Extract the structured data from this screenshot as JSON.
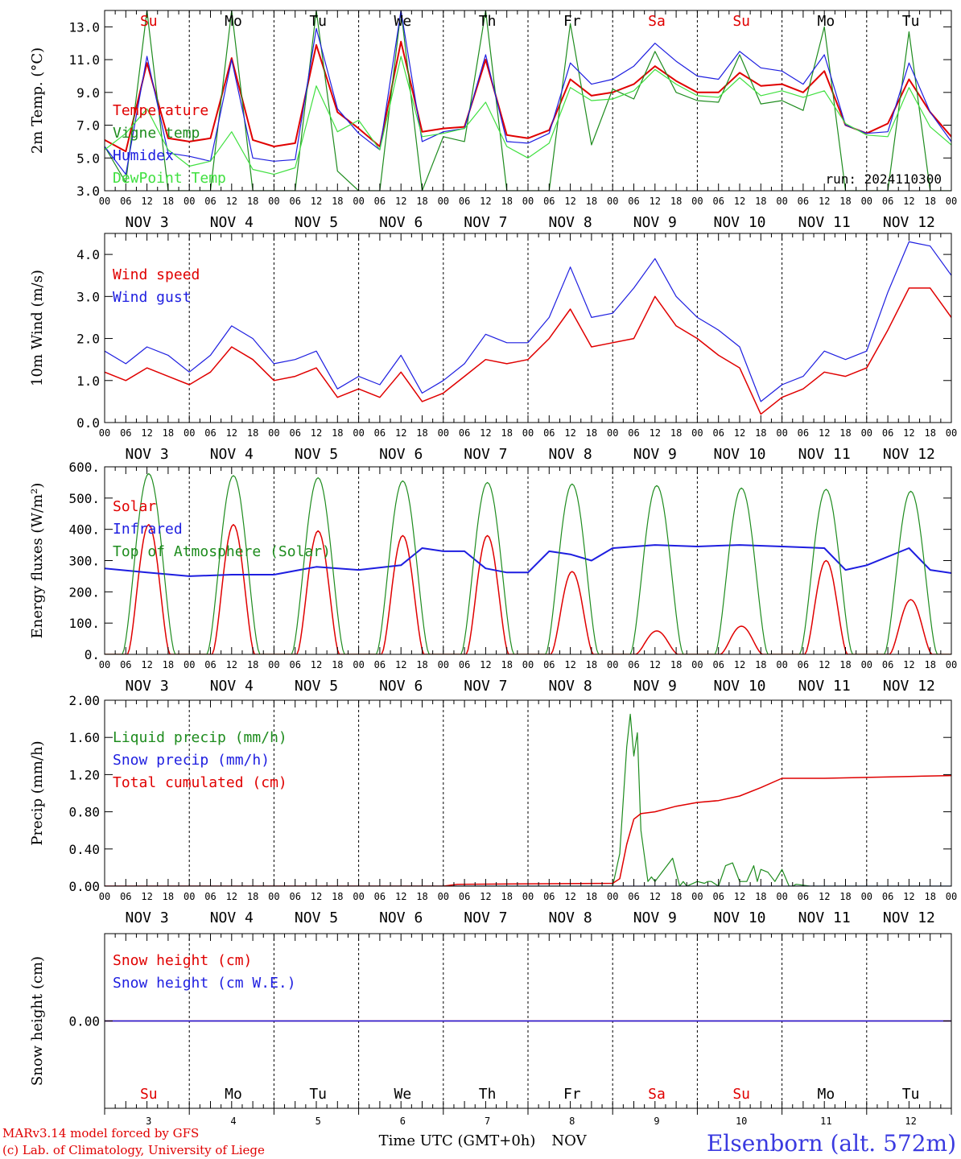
{
  "chart_data": {
    "title": "",
    "station": "Elsenborn (alt. 572m)",
    "run_label": "run: 2024110300",
    "footer": [
      "MARv3.14 model forced by GFS",
      "(c) Lab. of Climatology, University of Liege"
    ],
    "xlabel": "Time UTC (GMT+0h)",
    "month": "NOV",
    "hour_ticks": [
      "00",
      "06",
      "12",
      "18"
    ],
    "days": [
      {
        "num": "3",
        "date": "NOV  3",
        "wd": "Su",
        "weekend": true
      },
      {
        "num": "4",
        "date": "NOV  4",
        "wd": "Mo",
        "weekend": false
      },
      {
        "num": "5",
        "date": "NOV  5",
        "wd": "Tu",
        "weekend": false
      },
      {
        "num": "6",
        "date": "NOV  6",
        "wd": "We",
        "weekend": false
      },
      {
        "num": "7",
        "date": "NOV  7",
        "wd": "Th",
        "weekend": false
      },
      {
        "num": "8",
        "date": "NOV  8",
        "wd": "Fr",
        "weekend": false
      },
      {
        "num": "9",
        "date": "NOV  9",
        "wd": "Sa",
        "weekend": true
      },
      {
        "num": "10",
        "date": "NOV 10",
        "wd": "Su",
        "weekend": true
      },
      {
        "num": "11",
        "date": "NOV 11",
        "wd": "Mo",
        "weekend": false
      },
      {
        "num": "12",
        "date": "NOV 12",
        "wd": "Tu",
        "weekend": false
      }
    ],
    "x_unit": "hours since NOV 3 00 UTC",
    "panels": [
      {
        "id": "temp",
        "type": "line",
        "ylabel": "2m Temp. (°C)",
        "ylim": [
          3,
          14
        ],
        "yticks": [
          3,
          5,
          7,
          9,
          11,
          13
        ],
        "ytick_labels": [
          "3.0",
          "5.0",
          "7.0",
          "9.0",
          "11.0",
          "13.0"
        ],
        "series": [
          {
            "name": "Temperature",
            "color": "#e00000",
            "width": 2,
            "x": [
              0,
              6,
              12,
              18,
              24,
              30,
              36,
              42,
              48,
              54,
              60,
              66,
              72,
              78,
              84,
              90,
              96,
              102,
              108,
              114,
              120,
              126,
              132,
              138,
              144,
              150,
              156,
              162,
              168,
              174,
              180,
              186,
              192,
              198,
              204,
              210,
              216,
              222,
              228,
              234,
              240
            ],
            "y": [
              6.1,
              5.4,
              10.8,
              6.2,
              6.0,
              6.2,
              11.1,
              6.1,
              5.7,
              5.9,
              11.9,
              7.8,
              6.8,
              5.7,
              12.1,
              6.6,
              6.8,
              6.9,
              11.0,
              6.4,
              6.2,
              6.7,
              9.8,
              8.8,
              9.0,
              9.5,
              10.6,
              9.7,
              9.0,
              9.0,
              10.2,
              9.4,
              9.5,
              9.0,
              10.3,
              7.0,
              6.5,
              7.1,
              9.8,
              7.8,
              6.3
            ]
          },
          {
            "name": "Vigne temp",
            "color": "#1e8c1e",
            "width": 1.2,
            "x": [
              0,
              6,
              12,
              18,
              24,
              30,
              36,
              42,
              48,
              54,
              60,
              66,
              72,
              78,
              84,
              90,
              96,
              102,
              108,
              114,
              120,
              126,
              132,
              138,
              144,
              150,
              156,
              162,
              168,
              174,
              180,
              186,
              192,
              198,
              204,
              210,
              216,
              222,
              228,
              234,
              240
            ],
            "y": [
              5.7,
              3.5,
              14.0,
              3.0,
              3.0,
              3.0,
              14.0,
              3.0,
              3.0,
              3.0,
              14.0,
              4.2,
              3.0,
              3.0,
              14.0,
              3.0,
              6.3,
              6.0,
              14.0,
              3.0,
              3.0,
              3.0,
              13.2,
              5.8,
              9.2,
              8.6,
              11.5,
              9.0,
              8.5,
              8.4,
              11.3,
              8.3,
              8.5,
              7.9,
              13.0,
              3.0,
              3.0,
              3.0,
              12.7,
              3.0,
              3.0
            ]
          },
          {
            "name": "Humidex",
            "color": "#1e1ee0",
            "width": 1.2,
            "x": [
              0,
              6,
              12,
              18,
              24,
              30,
              36,
              42,
              48,
              54,
              60,
              66,
              72,
              78,
              84,
              90,
              96,
              102,
              108,
              114,
              120,
              126,
              132,
              138,
              144,
              150,
              156,
              162,
              168,
              174,
              180,
              186,
              192,
              198,
              204,
              210,
              216,
              222,
              228,
              234,
              240
            ],
            "y": [
              5.7,
              4.0,
              11.2,
              5.3,
              5.1,
              4.8,
              11.0,
              5.0,
              4.8,
              4.9,
              12.9,
              8.0,
              6.5,
              5.5,
              14.0,
              6.0,
              6.6,
              6.8,
              11.3,
              6.0,
              5.9,
              6.5,
              10.8,
              9.5,
              9.8,
              10.6,
              12.0,
              10.9,
              10.0,
              9.8,
              11.5,
              10.5,
              10.3,
              9.5,
              11.3,
              7.0,
              6.5,
              6.6,
              10.8,
              7.8,
              6.0
            ]
          },
          {
            "name": "DewPoint Temp",
            "color": "#40e040",
            "width": 1.2,
            "x": [
              0,
              6,
              12,
              18,
              24,
              30,
              36,
              42,
              48,
              54,
              60,
              66,
              72,
              78,
              84,
              90,
              96,
              102,
              108,
              114,
              120,
              126,
              132,
              138,
              144,
              150,
              156,
              162,
              168,
              174,
              180,
              186,
              192,
              198,
              204,
              210,
              216,
              222,
              228,
              234,
              240
            ],
            "y": [
              5.5,
              6.5,
              8.0,
              5.5,
              4.5,
              4.8,
              6.6,
              4.3,
              4.0,
              4.4,
              9.4,
              6.6,
              7.3,
              5.5,
              11.2,
              6.3,
              6.5,
              6.8,
              8.4,
              5.7,
              5.0,
              5.9,
              9.3,
              8.5,
              8.6,
              9.1,
              10.4,
              9.5,
              8.8,
              8.7,
              9.9,
              8.8,
              9.1,
              8.7,
              9.1,
              7.1,
              6.4,
              6.3,
              9.3,
              6.9,
              5.8
            ]
          }
        ]
      },
      {
        "id": "wind",
        "type": "line",
        "ylabel": "10m Wind (m/s)",
        "ylim": [
          0,
          4.5
        ],
        "yticks": [
          0,
          1,
          2,
          3,
          4
        ],
        "ytick_labels": [
          "0.0",
          "1.0",
          "2.0",
          "3.0",
          "4.0"
        ],
        "series": [
          {
            "name": "Wind speed",
            "color": "#e00000",
            "width": 1.5,
            "x": [
              0,
              6,
              12,
              18,
              24,
              30,
              36,
              42,
              48,
              54,
              60,
              66,
              72,
              78,
              84,
              90,
              96,
              102,
              108,
              114,
              120,
              126,
              132,
              138,
              144,
              150,
              156,
              162,
              168,
              174,
              180,
              186,
              192,
              198,
              204,
              210,
              216,
              222,
              228,
              234,
              240
            ],
            "y": [
              1.2,
              1.0,
              1.3,
              1.1,
              0.9,
              1.2,
              1.8,
              1.5,
              1.0,
              1.1,
              1.3,
              0.6,
              0.8,
              0.6,
              1.2,
              0.5,
              0.7,
              1.1,
              1.5,
              1.4,
              1.5,
              2.0,
              2.7,
              1.8,
              1.9,
              2.0,
              3.0,
              2.3,
              2.0,
              1.6,
              1.3,
              0.2,
              0.6,
              0.8,
              1.2,
              1.1,
              1.3,
              2.2,
              3.2,
              3.2,
              2.5
            ]
          },
          {
            "name": "Wind gust",
            "color": "#1e1ee0",
            "width": 1.2,
            "x": [
              0,
              6,
              12,
              18,
              24,
              30,
              36,
              42,
              48,
              54,
              60,
              66,
              72,
              78,
              84,
              90,
              96,
              102,
              108,
              114,
              120,
              126,
              132,
              138,
              144,
              150,
              156,
              162,
              168,
              174,
              180,
              186,
              192,
              198,
              204,
              210,
              216,
              222,
              228,
              234,
              240
            ],
            "y": [
              1.7,
              1.4,
              1.8,
              1.6,
              1.2,
              1.6,
              2.3,
              2.0,
              1.4,
              1.5,
              1.7,
              0.8,
              1.1,
              0.9,
              1.6,
              0.7,
              1.0,
              1.4,
              2.1,
              1.9,
              1.9,
              2.5,
              3.7,
              2.5,
              2.6,
              3.2,
              3.9,
              3.0,
              2.5,
              2.2,
              1.8,
              0.5,
              0.9,
              1.1,
              1.7,
              1.5,
              1.7,
              3.1,
              4.3,
              4.2,
              3.5
            ]
          }
        ]
      },
      {
        "id": "energy",
        "type": "line",
        "ylabel": "Energy fluxes (W/m²)",
        "ylim": [
          0,
          600
        ],
        "yticks": [
          0,
          100,
          200,
          300,
          400,
          500,
          600
        ],
        "ytick_labels": [
          "0.",
          "100.",
          "200.",
          "300.",
          "400.",
          "500.",
          "600."
        ],
        "series": [
          {
            "name": "Solar",
            "color": "#e00000",
            "width": 1.5,
            "diurnal_peaks": [
              415,
              415,
              395,
              380,
              380,
              265,
              75,
              90,
              300,
              175
            ]
          },
          {
            "name": "Infrared",
            "color": "#1e1ee0",
            "width": 2,
            "x": [
              0,
              12,
              24,
              36,
              48,
              60,
              72,
              84,
              90,
              96,
              102,
              108,
              114,
              120,
              126,
              132,
              138,
              144,
              156,
              168,
              180,
              192,
              204,
              210,
              216,
              228,
              234,
              240
            ],
            "y": [
              275,
              262,
              250,
              255,
              255,
              280,
              270,
              285,
              340,
              330,
              330,
              275,
              262,
              262,
              330,
              320,
              300,
              340,
              350,
              345,
              350,
              345,
              340,
              270,
              285,
              340,
              270,
              260
            ]
          },
          {
            "name": "Top of Atmosphere (Solar)",
            "color": "#1e8c1e",
            "width": 1.2,
            "diurnal_peaks": [
              578,
              572,
              565,
              555,
              550,
              545,
              540,
              532,
              528,
              522
            ]
          }
        ]
      },
      {
        "id": "precip",
        "type": "line",
        "ylabel": "Precip (mm/h)",
        "ylim": [
          0,
          2
        ],
        "yticks": [
          0,
          0.4,
          0.8,
          1.2,
          1.6,
          2.0
        ],
        "ytick_labels": [
          "0.00",
          "0.40",
          "0.80",
          "1.20",
          "1.60",
          "2.00"
        ],
        "series": [
          {
            "name": "Liquid precip (mm/h)",
            "color": "#1e8c1e",
            "width": 1.2,
            "x": [
              0,
              140,
              144,
              146,
              148,
              149,
              150,
              151,
              152,
              154,
              155,
              156,
              160,
              161,
              163,
              164,
              165,
              168,
              170,
              171,
              172,
              174,
              176,
              178,
              180,
              182,
              184,
              185,
              186,
              188,
              190,
              192,
              194,
              195,
              196,
              200,
              240
            ],
            "y": [
              0,
              0,
              0,
              0.35,
              1.5,
              1.85,
              1.4,
              1.65,
              0.6,
              0.05,
              0.1,
              0.05,
              0.25,
              0.3,
              0.0,
              0.05,
              0.0,
              0.05,
              0.03,
              0.05,
              0.05,
              0.0,
              0.22,
              0.25,
              0.05,
              0.05,
              0.22,
              0.05,
              0.18,
              0.15,
              0.05,
              0.18,
              0.0,
              0.0,
              0.02,
              0.0,
              0
            ]
          },
          {
            "name": "Snow precip (mm/h)",
            "color": "#1e1ee0",
            "width": 1.2,
            "x": [
              0,
              240
            ],
            "y": [
              0,
              0
            ]
          },
          {
            "name": "Total cumulated (cm)",
            "color": "#e00000",
            "width": 1.5,
            "x": [
              0,
              96,
              100,
              144,
              146,
              148,
              150,
              152,
              154,
              156,
              162,
              168,
              174,
              180,
              186,
              192,
              198,
              204,
              216,
              228,
              240
            ],
            "y": [
              0,
              0,
              0.02,
              0.03,
              0.08,
              0.45,
              0.72,
              0.78,
              0.79,
              0.8,
              0.86,
              0.9,
              0.92,
              0.97,
              1.06,
              1.16,
              1.16,
              1.16,
              1.17,
              1.18,
              1.19
            ]
          }
        ]
      },
      {
        "id": "snow",
        "type": "line",
        "ylabel": "Snow height (cm)",
        "ylim": [
          -1,
          1
        ],
        "yticks": [
          0
        ],
        "ytick_labels": [
          "0.00"
        ],
        "series": [
          {
            "name": "Snow height (cm)",
            "color": "#e00000",
            "width": 1.5,
            "x": [
              0,
              240
            ],
            "y": [
              0,
              0
            ]
          },
          {
            "name": "Snow height (cm W.E.)",
            "color": "#1e1ee0",
            "width": 1.5,
            "x": [
              0,
              240
            ],
            "y": [
              0,
              0
            ]
          }
        ]
      }
    ]
  }
}
